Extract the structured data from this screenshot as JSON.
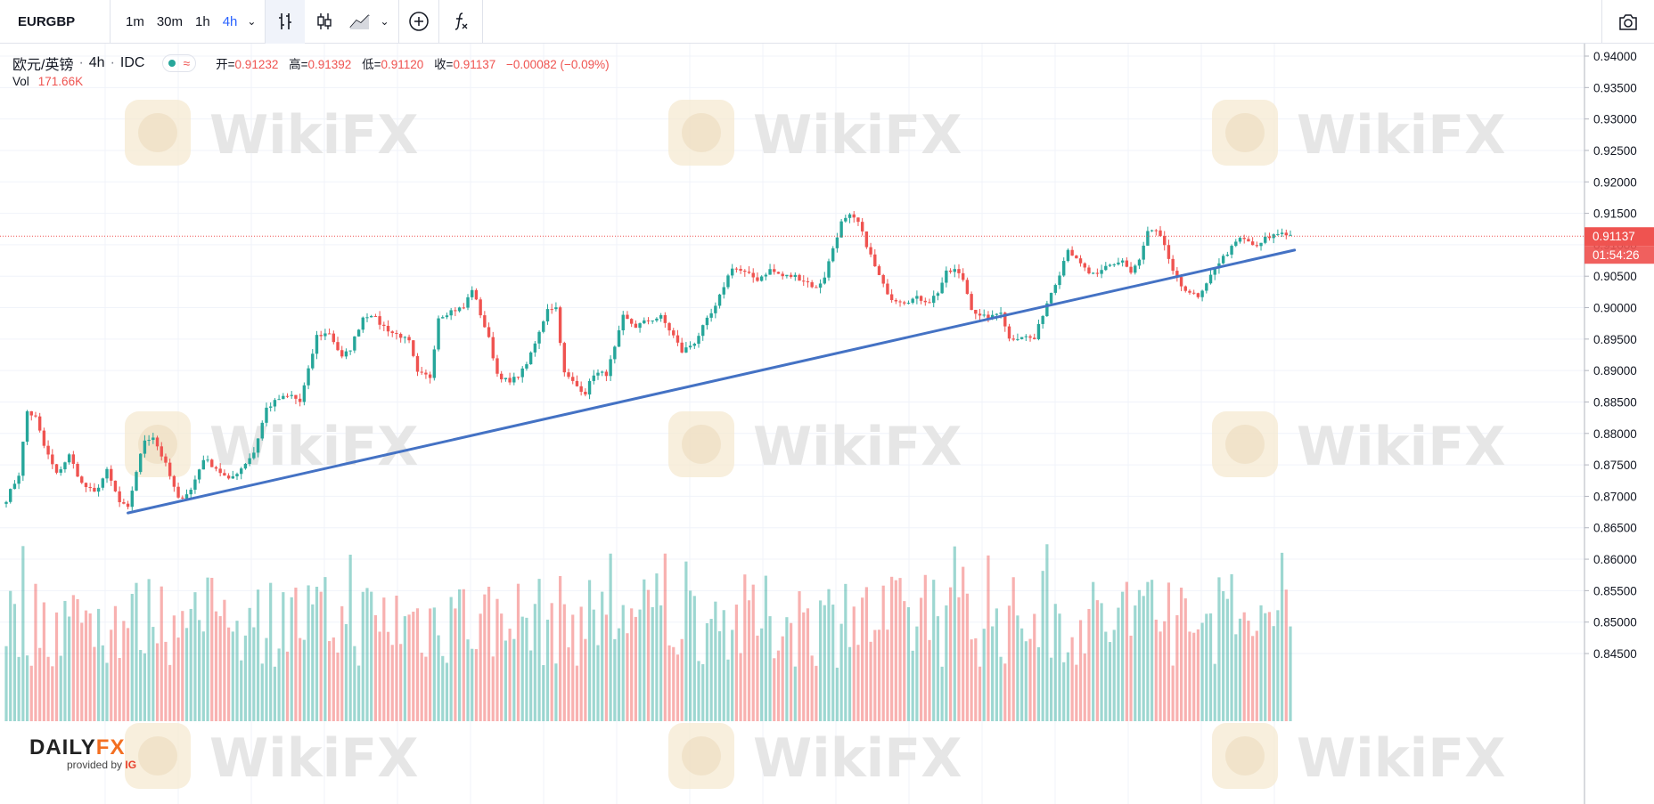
{
  "toolbar": {
    "symbol": "EURGBP",
    "intervals": [
      "1m",
      "30m",
      "1h",
      "4h"
    ],
    "active_interval": "4h"
  },
  "legend": {
    "pair_name": "欧元/英镑",
    "interval": "4h",
    "source": "IDC",
    "status_glyph": "≈",
    "open_label": "开=",
    "open": "0.91232",
    "high_label": "高=",
    "high": "0.91392",
    "low_label": "低=",
    "low": "0.91120",
    "close_label": "收=",
    "close": "0.91137",
    "change": "−0.00082 (−0.09%)",
    "vol_label": "Vol",
    "vol_value": "171.66K"
  },
  "watermark": {
    "text": "WikiFX"
  },
  "branding": {
    "name_part1": "DAILY",
    "name_part2": "FX",
    "provided_by": "provided by",
    "provider": "IG"
  },
  "colors": {
    "up": "#26a69a",
    "down": "#ef5350",
    "trendline": "#4472c4",
    "accent": "#2962ff"
  },
  "chart_data": {
    "type": "candlestick",
    "y_axis_ticks": [
      "0.94000",
      "0.93500",
      "0.93000",
      "0.92500",
      "0.92000",
      "0.91500",
      "0.91000",
      "0.90500",
      "0.90000",
      "0.89500",
      "0.89000",
      "0.88500",
      "0.88000",
      "0.87500",
      "0.87000",
      "0.86500",
      "0.86000",
      "0.85500",
      "0.85000",
      "0.84500"
    ],
    "ylim": [
      0.8438,
      0.9427
    ],
    "last_price_label": "0.91137",
    "countdown_label": "01:54:26",
    "last_price": 0.91137,
    "price_path": [
      [
        0,
        0.8695
      ],
      [
        3,
        0.8735
      ],
      [
        5,
        0.8835
      ],
      [
        7,
        0.8825
      ],
      [
        9,
        0.878
      ],
      [
        12,
        0.8735
      ],
      [
        15,
        0.8765
      ],
      [
        18,
        0.872
      ],
      [
        21,
        0.8705
      ],
      [
        24,
        0.874
      ],
      [
        27,
        0.869
      ],
      [
        29,
        0.868
      ],
      [
        31,
        0.874
      ],
      [
        33,
        0.879
      ],
      [
        35,
        0.8795
      ],
      [
        38,
        0.875
      ],
      [
        41,
        0.8695
      ],
      [
        44,
        0.871
      ],
      [
        47,
        0.876
      ],
      [
        50,
        0.8745
      ],
      [
        53,
        0.8725
      ],
      [
        56,
        0.8745
      ],
      [
        59,
        0.877
      ],
      [
        62,
        0.884
      ],
      [
        65,
        0.8855
      ],
      [
        68,
        0.886
      ],
      [
        70,
        0.885
      ],
      [
        72,
        0.89
      ],
      [
        74,
        0.8955
      ],
      [
        77,
        0.896
      ],
      [
        80,
        0.892
      ],
      [
        82,
        0.8935
      ],
      [
        85,
        0.8985
      ],
      [
        87,
        0.899
      ],
      [
        89,
        0.8975
      ],
      [
        92,
        0.896
      ],
      [
        94,
        0.8955
      ],
      [
        96,
        0.8945
      ],
      [
        98,
        0.8895
      ],
      [
        101,
        0.889
      ],
      [
        103,
        0.8985
      ],
      [
        106,
        0.8995
      ],
      [
        109,
        0.9
      ],
      [
        111,
        0.903
      ],
      [
        113,
        0.899
      ],
      [
        115,
        0.895
      ],
      [
        117,
        0.8895
      ],
      [
        120,
        0.888
      ],
      [
        123,
        0.89
      ],
      [
        125,
        0.8925
      ],
      [
        127,
        0.896
      ],
      [
        129,
        0.9
      ],
      [
        131,
        0.9
      ],
      [
        133,
        0.8895
      ],
      [
        136,
        0.8875
      ],
      [
        138,
        0.8865
      ],
      [
        140,
        0.8895
      ],
      [
        143,
        0.8895
      ],
      [
        145,
        0.8935
      ],
      [
        147,
        0.8985
      ],
      [
        150,
        0.897
      ],
      [
        153,
        0.898
      ],
      [
        156,
        0.8985
      ],
      [
        159,
        0.8955
      ],
      [
        161,
        0.893
      ],
      [
        164,
        0.8945
      ],
      [
        167,
        0.898
      ],
      [
        169,
        0.9
      ],
      [
        171,
        0.9035
      ],
      [
        173,
        0.9065
      ],
      [
        176,
        0.9055
      ],
      [
        179,
        0.9045
      ],
      [
        182,
        0.906
      ],
      [
        185,
        0.905
      ],
      [
        188,
        0.905
      ],
      [
        191,
        0.904
      ],
      [
        193,
        0.903
      ],
      [
        195,
        0.905
      ],
      [
        197,
        0.9095
      ],
      [
        199,
        0.9135
      ],
      [
        201,
        0.9145
      ],
      [
        203,
        0.9135
      ],
      [
        205,
        0.91
      ],
      [
        207,
        0.9065
      ],
      [
        209,
        0.9035
      ],
      [
        211,
        0.9015
      ],
      [
        214,
        0.901
      ],
      [
        217,
        0.9015
      ],
      [
        220,
        0.901
      ],
      [
        222,
        0.9025
      ],
      [
        224,
        0.9055
      ],
      [
        226,
        0.906
      ],
      [
        228,
        0.9045
      ],
      [
        230,
        0.9
      ],
      [
        232,
        0.8985
      ],
      [
        235,
        0.8985
      ],
      [
        237,
        0.8995
      ],
      [
        239,
        0.895
      ],
      [
        242,
        0.8955
      ],
      [
        245,
        0.895
      ],
      [
        247,
        0.899
      ],
      [
        249,
        0.9025
      ],
      [
        251,
        0.9055
      ],
      [
        253,
        0.9095
      ],
      [
        255,
        0.9075
      ],
      [
        258,
        0.9055
      ],
      [
        260,
        0.905
      ],
      [
        262,
        0.9065
      ],
      [
        264,
        0.907
      ],
      [
        266,
        0.9075
      ],
      [
        268,
        0.9055
      ],
      [
        270,
        0.9075
      ],
      [
        272,
        0.912
      ],
      [
        274,
        0.912
      ],
      [
        276,
        0.91
      ],
      [
        278,
        0.9055
      ],
      [
        280,
        0.9035
      ],
      [
        282,
        0.9025
      ],
      [
        284,
        0.9015
      ],
      [
        286,
        0.9035
      ],
      [
        288,
        0.9065
      ],
      [
        290,
        0.908
      ],
      [
        292,
        0.9095
      ],
      [
        294,
        0.911
      ],
      [
        296,
        0.9105
      ],
      [
        298,
        0.9095
      ],
      [
        300,
        0.911
      ],
      [
        302,
        0.9115
      ],
      [
        304,
        0.912
      ],
      [
        306,
        0.9115
      ]
    ],
    "candle_count": 307,
    "trendline": [
      [
        29,
        0.86735
      ],
      [
        307,
        0.90915
      ]
    ]
  }
}
